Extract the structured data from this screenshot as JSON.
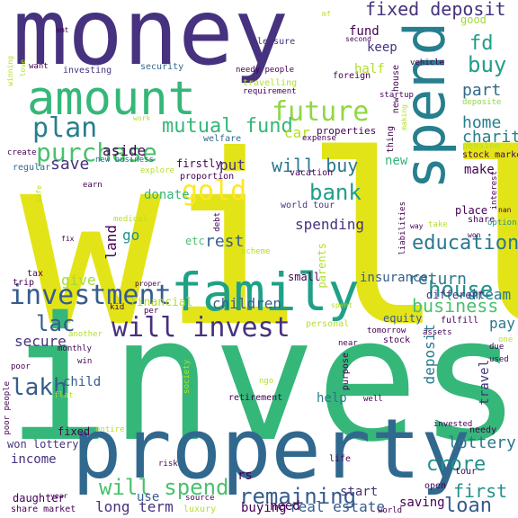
{
  "title": "",
  "palette": {
    "purple": "#46327e",
    "deep_purple": "#440154",
    "blue": "#365c8d",
    "teal": "#277f8e",
    "green": "#1fa187",
    "mint": "#4ac16d",
    "lime": "#a0da39",
    "yellow": "#e3e418"
  },
  "words": [
    {
      "text": "will",
      "color": "#e3e418",
      "orientation": "horizontal"
    },
    {
      "text": "invest",
      "color": "#35b779",
      "orientation": "horizontal"
    },
    {
      "text": "money",
      "color": "#46327e",
      "orientation": "horizontal"
    },
    {
      "text": "property",
      "color": "#31688e",
      "orientation": "horizontal"
    },
    {
      "text": "amount",
      "color": "#35b779",
      "orientation": "horizontal"
    },
    {
      "text": "family",
      "color": "#1fa187",
      "orientation": "horizontal"
    },
    {
      "text": "spend",
      "color": "#277f8e",
      "orientation": "vertical"
    },
    {
      "text": "investment",
      "color": "#365c8d",
      "orientation": "horizontal"
    },
    {
      "text": "will invest",
      "color": "#46327e",
      "orientation": "horizontal"
    },
    {
      "text": "future",
      "color": "#90d743",
      "orientation": "horizontal"
    },
    {
      "text": "gold",
      "color": "#fde725",
      "orientation": "horizontal"
    },
    {
      "text": "plan",
      "color": "#277f8e",
      "orientation": "horizontal"
    },
    {
      "text": "purchase",
      "color": "#4ac16d",
      "orientation": "horizontal"
    },
    {
      "text": "mutual fund",
      "color": "#35b779",
      "orientation": "horizontal"
    },
    {
      "text": "fixed deposit",
      "color": "#46327e",
      "orientation": "horizontal"
    },
    {
      "text": "buy",
      "color": "#1f9e89",
      "orientation": "horizontal"
    },
    {
      "text": "fd",
      "color": "#1f9e89",
      "orientation": "horizontal"
    },
    {
      "text": "part",
      "color": "#31688e",
      "orientation": "horizontal"
    },
    {
      "text": "home",
      "color": "#277f8e",
      "orientation": "horizontal"
    },
    {
      "text": "charity",
      "color": "#277f8e",
      "orientation": "horizontal"
    },
    {
      "text": "bank",
      "color": "#1f9e89",
      "orientation": "horizontal"
    },
    {
      "text": "will buy",
      "color": "#2a788e",
      "orientation": "horizontal"
    },
    {
      "text": "education",
      "color": "#2a788e",
      "orientation": "horizontal"
    },
    {
      "text": "house",
      "color": "#21918c",
      "orientation": "horizontal"
    },
    {
      "text": "business",
      "color": "#4ac16d",
      "orientation": "horizontal"
    },
    {
      "text": "return",
      "color": "#2a788e",
      "orientation": "horizontal"
    },
    {
      "text": "lakh",
      "color": "#365c8d",
      "orientation": "horizontal"
    },
    {
      "text": "will spend",
      "color": "#4ac16d",
      "orientation": "horizontal"
    },
    {
      "text": "remaining",
      "color": "#365c8d",
      "orientation": "horizontal"
    },
    {
      "text": "crore",
      "color": "#21918c",
      "orientation": "horizontal"
    },
    {
      "text": "loan",
      "color": "#365c8d",
      "orientation": "horizontal"
    },
    {
      "text": "first",
      "color": "#21918c",
      "orientation": "horizontal"
    },
    {
      "text": "lottery",
      "color": "#2a788e",
      "orientation": "horizontal"
    },
    {
      "text": "lac",
      "color": "#365c8d",
      "orientation": "horizontal"
    },
    {
      "text": "save",
      "color": "#46327e",
      "orientation": "horizontal"
    },
    {
      "text": "aside",
      "color": "#440154",
      "orientation": "horizontal"
    },
    {
      "text": "rest",
      "color": "#365c8d",
      "orientation": "horizontal"
    },
    {
      "text": "put",
      "color": "#46327e",
      "orientation": "horizontal"
    },
    {
      "text": "car",
      "color": "#b5de2b",
      "orientation": "horizontal"
    },
    {
      "text": "spending",
      "color": "#46327e",
      "orientation": "horizontal"
    },
    {
      "text": "go",
      "color": "#21918c",
      "orientation": "horizontal"
    },
    {
      "text": "children",
      "color": "#365c8d",
      "orientation": "horizontal"
    },
    {
      "text": "give",
      "color": "#a0da39",
      "orientation": "horizontal"
    },
    {
      "text": "insurance",
      "color": "#365c8d",
      "orientation": "horizontal"
    },
    {
      "text": "dream",
      "color": "#2a788e",
      "orientation": "horizontal"
    },
    {
      "text": "pay",
      "color": "#2a788e",
      "orientation": "horizontal"
    },
    {
      "text": "equity",
      "color": "#365c8d",
      "orientation": "horizontal"
    },
    {
      "text": "secure",
      "color": "#46327e",
      "orientation": "horizontal"
    },
    {
      "text": "help",
      "color": "#2a788e",
      "orientation": "horizontal"
    },
    {
      "text": "child",
      "color": "#365c8d",
      "orientation": "horizontal"
    },
    {
      "text": "income",
      "color": "#46327e",
      "orientation": "horizontal"
    },
    {
      "text": "start",
      "color": "#46327e",
      "orientation": "horizontal"
    },
    {
      "text": "long term",
      "color": "#46327e",
      "orientation": "horizontal"
    },
    {
      "text": "buying",
      "color": "#440154",
      "orientation": "horizontal"
    },
    {
      "text": "real estate",
      "color": "#365c8d",
      "orientation": "horizontal"
    },
    {
      "text": "need",
      "color": "#440154",
      "orientation": "horizontal"
    },
    {
      "text": "use",
      "color": "#365c8d",
      "orientation": "horizontal"
    },
    {
      "text": "rs",
      "color": "#440154",
      "orientation": "horizontal"
    },
    {
      "text": "saving",
      "color": "#440154",
      "orientation": "horizontal"
    },
    {
      "text": "won lottery",
      "color": "#46327e",
      "orientation": "horizontal"
    },
    {
      "text": "fixed",
      "color": "#440154",
      "orientation": "horizontal"
    },
    {
      "text": "land",
      "color": "#440154",
      "orientation": "vertical"
    },
    {
      "text": "deposit",
      "color": "#2a788e",
      "orientation": "vertical"
    },
    {
      "text": "travel",
      "color": "#46327e",
      "orientation": "vertical"
    },
    {
      "text": "keep",
      "color": "#46327e",
      "orientation": "horizontal"
    },
    {
      "text": "fund",
      "color": "#440154",
      "orientation": "horizontal"
    },
    {
      "text": "half",
      "color": "#b5de2b",
      "orientation": "horizontal"
    },
    {
      "text": "new",
      "color": "#35b779",
      "orientation": "horizontal"
    },
    {
      "text": "make",
      "color": "#440154",
      "orientation": "horizontal"
    },
    {
      "text": "good",
      "color": "#a0da39",
      "orientation": "horizontal"
    },
    {
      "text": "place",
      "color": "#440154",
      "orientation": "horizontal"
    },
    {
      "text": "properties",
      "color": "#440154",
      "orientation": "horizontal"
    },
    {
      "text": "parents",
      "color": "#b5de2b",
      "orientation": "vertical"
    },
    {
      "text": "financial",
      "color": "#b5de2b",
      "orientation": "horizontal"
    },
    {
      "text": "firstly",
      "color": "#440154",
      "orientation": "horizontal"
    },
    {
      "text": "donate",
      "color": "#35b779",
      "orientation": "horizontal"
    },
    {
      "text": "small",
      "color": "#440154",
      "orientation": "horizontal"
    },
    {
      "text": "etc",
      "color": "#4ac16d",
      "orientation": "horizontal"
    },
    {
      "text": "world tour",
      "color": "#46327e",
      "orientation": "horizontal"
    },
    {
      "text": "vacation",
      "color": "#440154",
      "orientation": "horizontal"
    },
    {
      "text": "investing",
      "color": "#46327e",
      "orientation": "horizontal"
    },
    {
      "text": "security",
      "color": "#31688e",
      "orientation": "horizontal"
    },
    {
      "text": "leisure",
      "color": "#46327e",
      "orientation": "horizontal"
    },
    {
      "text": "needy people",
      "color": "#440154",
      "orientation": "horizontal"
    },
    {
      "text": "travelling",
      "color": "#b5de2b",
      "orientation": "horizontal"
    },
    {
      "text": "requirement",
      "color": "#440154",
      "orientation": "horizontal"
    },
    {
      "text": "welfare",
      "color": "#31688e",
      "orientation": "horizontal"
    },
    {
      "text": "new business",
      "color": "#31688e",
      "orientation": "horizontal"
    },
    {
      "text": "proportion",
      "color": "#440154",
      "orientation": "horizontal"
    },
    {
      "text": "explore",
      "color": "#b5de2b",
      "orientation": "horizontal"
    },
    {
      "text": "startup",
      "color": "#440154",
      "orientation": "horizontal"
    },
    {
      "text": "new house",
      "color": "#440154",
      "orientation": "vertical"
    },
    {
      "text": "foreign",
      "color": "#440154",
      "orientation": "horizontal"
    },
    {
      "text": "vehicle",
      "color": "#440154",
      "orientation": "horizontal"
    },
    {
      "text": "deposite",
      "color": "#90d743",
      "orientation": "horizontal"
    },
    {
      "text": "pension",
      "color": "#b5de2b",
      "orientation": "horizontal"
    },
    {
      "text": "stock market",
      "color": "#440154",
      "orientation": "horizontal"
    },
    {
      "text": "share",
      "color": "#440154",
      "orientation": "horizontal"
    },
    {
      "text": "option",
      "color": "#21918c",
      "orientation": "horizontal"
    },
    {
      "text": "take",
      "color": "#b5de2b",
      "orientation": "horizontal"
    },
    {
      "text": "expense",
      "color": "#440154",
      "orientation": "horizontal"
    },
    {
      "text": "regular",
      "color": "#31688e",
      "orientation": "horizontal"
    },
    {
      "text": "earn",
      "color": "#440154",
      "orientation": "horizontal"
    },
    {
      "text": "create",
      "color": "#440154",
      "orientation": "horizontal"
    },
    {
      "text": "medical",
      "color": "#b5de2b",
      "orientation": "horizontal"
    },
    {
      "text": "debt",
      "color": "#440154",
      "orientation": "vertical"
    },
    {
      "text": "scheme",
      "color": "#b5de2b",
      "orientation": "horizontal"
    },
    {
      "text": "trip",
      "color": "#440154",
      "orientation": "horizontal"
    },
    {
      "text": "tax",
      "color": "#440154",
      "orientation": "horizontal"
    },
    {
      "text": "different",
      "color": "#46327e",
      "orientation": "horizontal"
    },
    {
      "text": "fulfill",
      "color": "#440154",
      "orientation": "horizontal"
    },
    {
      "text": "tomorrow",
      "color": "#440154",
      "orientation": "horizontal"
    },
    {
      "text": "assets",
      "color": "#440154",
      "orientation": "horizontal"
    },
    {
      "text": "personal",
      "color": "#b5de2b",
      "orientation": "horizontal"
    },
    {
      "text": "kid",
      "color": "#440154",
      "orientation": "horizontal"
    },
    {
      "text": "per",
      "color": "#440154",
      "orientation": "horizontal"
    },
    {
      "text": "monthly",
      "color": "#440154",
      "orientation": "horizontal"
    },
    {
      "text": "another",
      "color": "#b5de2b",
      "orientation": "horizontal"
    },
    {
      "text": "win",
      "color": "#440154",
      "orientation": "horizontal"
    },
    {
      "text": "poor",
      "color": "#440154",
      "orientation": "horizontal"
    },
    {
      "text": "flat",
      "color": "#b5de2b",
      "orientation": "horizontal"
    },
    {
      "text": "ngo",
      "color": "#b5de2b",
      "orientation": "horizontal"
    },
    {
      "text": "near",
      "color": "#440154",
      "orientation": "horizontal"
    },
    {
      "text": "purpose",
      "color": "#440154",
      "orientation": "vertical"
    },
    {
      "text": "stock",
      "color": "#440154",
      "orientation": "horizontal"
    },
    {
      "text": "well",
      "color": "#440154",
      "orientation": "horizontal"
    },
    {
      "text": "retirement",
      "color": "#440154",
      "orientation": "horizontal"
    },
    {
      "text": "invested",
      "color": "#440154",
      "orientation": "horizontal"
    },
    {
      "text": "due",
      "color": "#440154",
      "orientation": "horizontal"
    },
    {
      "text": "used",
      "color": "#440154",
      "orientation": "horizontal"
    },
    {
      "text": "one",
      "color": "#b5de2b",
      "orientation": "horizontal"
    },
    {
      "text": "entire",
      "color": "#b5de2b",
      "orientation": "horizontal"
    },
    {
      "text": "needy",
      "color": "#440154",
      "orientation": "horizontal"
    },
    {
      "text": "life",
      "color": "#440154",
      "orientation": "horizontal"
    },
    {
      "text": "risk",
      "color": "#440154",
      "orientation": "horizontal"
    },
    {
      "text": "tour",
      "color": "#440154",
      "orientation": "horizontal"
    },
    {
      "text": "open",
      "color": "#440154",
      "orientation": "horizontal"
    },
    {
      "text": "daughter",
      "color": "#440154",
      "orientation": "horizontal"
    },
    {
      "text": "share market",
      "color": "#440154",
      "orientation": "horizontal"
    },
    {
      "text": "source",
      "color": "#440154",
      "orientation": "horizontal"
    },
    {
      "text": "luxury",
      "color": "#b5de2b",
      "orientation": "horizontal"
    },
    {
      "text": "world",
      "color": "#440154",
      "orientation": "horizontal"
    },
    {
      "text": "fix",
      "color": "#440154",
      "orientation": "horizontal"
    },
    {
      "text": "thing",
      "color": "#440154",
      "orientation": "vertical"
    },
    {
      "text": "interest",
      "color": "#440154",
      "orientation": "vertical"
    },
    {
      "text": "liabilities",
      "color": "#440154",
      "orientation": "vertical"
    },
    {
      "text": "way",
      "color": "#440154",
      "orientation": "horizontal"
    },
    {
      "text": "society",
      "color": "#b5de2b",
      "orientation": "vertical"
    },
    {
      "text": "poor people",
      "color": "#440154",
      "orientation": "vertical"
    },
    {
      "text": "safe",
      "color": "#b5de2b",
      "orientation": "vertical"
    },
    {
      "text": "love",
      "color": "#b5de2b",
      "orientation": "vertical"
    },
    {
      "text": "winning",
      "color": "#b5de2b",
      "orientation": "vertical"
    },
    {
      "text": "making",
      "color": "#b5de2b",
      "orientation": "vertical"
    },
    {
      "text": "amt",
      "color": "#440154",
      "orientation": "horizontal"
    },
    {
      "text": "want",
      "color": "#440154",
      "orientation": "horizontal"
    },
    {
      "text": "second",
      "color": "#440154",
      "orientation": "horizontal"
    },
    {
      "text": "work",
      "color": "#b5de2b",
      "orientation": "horizontal"
    },
    {
      "text": "mf",
      "color": "#b5de2b",
      "orientation": "horizontal"
    },
    {
      "text": "won",
      "color": "#440154",
      "orientation": "horizontal"
    },
    {
      "text": "nan",
      "color": "#440154",
      "orientation": "horizontal"
    },
    {
      "text": "spent",
      "color": "#b5de2b",
      "orientation": "horizontal"
    },
    {
      "text": "proper",
      "color": "#440154",
      "orientation": "horizontal"
    },
    {
      "text": "year",
      "color": "#440154",
      "orientation": "horizontal"
    }
  ]
}
